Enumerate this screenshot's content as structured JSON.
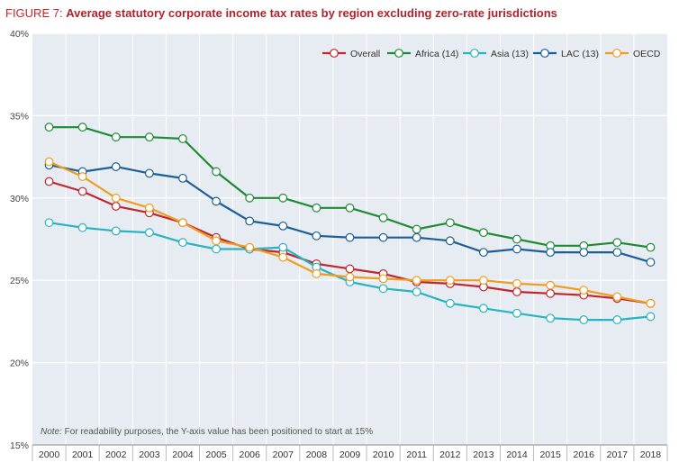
{
  "figure_label": "FIGURE 7:",
  "title": "Average statutory corporate income tax rates by region excluding zero-rate jurisdictions",
  "note_prefix": "Note:",
  "note_text": " For readability purposes, the Y-axis value has been positioned to start at 15%",
  "chart_data": {
    "type": "line",
    "title": "Average statutory corporate income tax rates by region excluding zero-rate jurisdictions",
    "xlabel": "",
    "ylabel": "",
    "x": [
      "2000",
      "2001",
      "2002",
      "2003",
      "2004",
      "2005",
      "2006",
      "2007",
      "2008",
      "2009",
      "2010",
      "2011",
      "2012",
      "2013",
      "2014",
      "2015",
      "2016",
      "2017",
      "2018"
    ],
    "ylim": [
      15,
      40
    ],
    "yticks": [
      15,
      20,
      25,
      30,
      35,
      40
    ],
    "ytick_labels": [
      "15%",
      "20%",
      "25%",
      "30%",
      "35%",
      "40%"
    ],
    "grid": true,
    "legend_position": "top-right",
    "series": [
      {
        "name": "Overall",
        "color": "#c0262d",
        "values": [
          31.0,
          30.4,
          29.5,
          29.1,
          28.5,
          27.6,
          26.9,
          26.7,
          26.0,
          25.7,
          25.4,
          24.9,
          24.8,
          24.6,
          24.3,
          24.2,
          24.1,
          23.9,
          23.6
        ]
      },
      {
        "name": "Africa (14)",
        "color": "#1e8a35",
        "values": [
          34.3,
          34.3,
          33.7,
          33.7,
          33.6,
          31.6,
          30.0,
          30.0,
          29.4,
          29.4,
          28.8,
          28.1,
          28.5,
          27.9,
          27.5,
          27.1,
          27.1,
          27.3,
          27.0
        ]
      },
      {
        "name": "Asia (13)",
        "color": "#27b3c0",
        "values": [
          28.5,
          28.2,
          28.0,
          27.9,
          27.3,
          26.9,
          26.9,
          27.0,
          25.8,
          24.9,
          24.5,
          24.3,
          23.6,
          23.3,
          23.0,
          22.7,
          22.6,
          22.6,
          22.8
        ]
      },
      {
        "name": "LAC (13)",
        "color": "#1c5e96",
        "values": [
          32.0,
          31.6,
          31.9,
          31.5,
          31.2,
          29.8,
          28.6,
          28.3,
          27.7,
          27.6,
          27.6,
          27.6,
          27.4,
          26.7,
          26.9,
          26.7,
          26.7,
          26.7,
          26.1
        ]
      },
      {
        "name": "OECD",
        "color": "#f09c1f",
        "values": [
          32.2,
          31.3,
          30.0,
          29.4,
          28.5,
          27.4,
          27.0,
          26.4,
          25.4,
          25.2,
          25.1,
          25.0,
          25.0,
          25.0,
          24.8,
          24.7,
          24.4,
          24.0,
          23.6
        ]
      }
    ]
  }
}
